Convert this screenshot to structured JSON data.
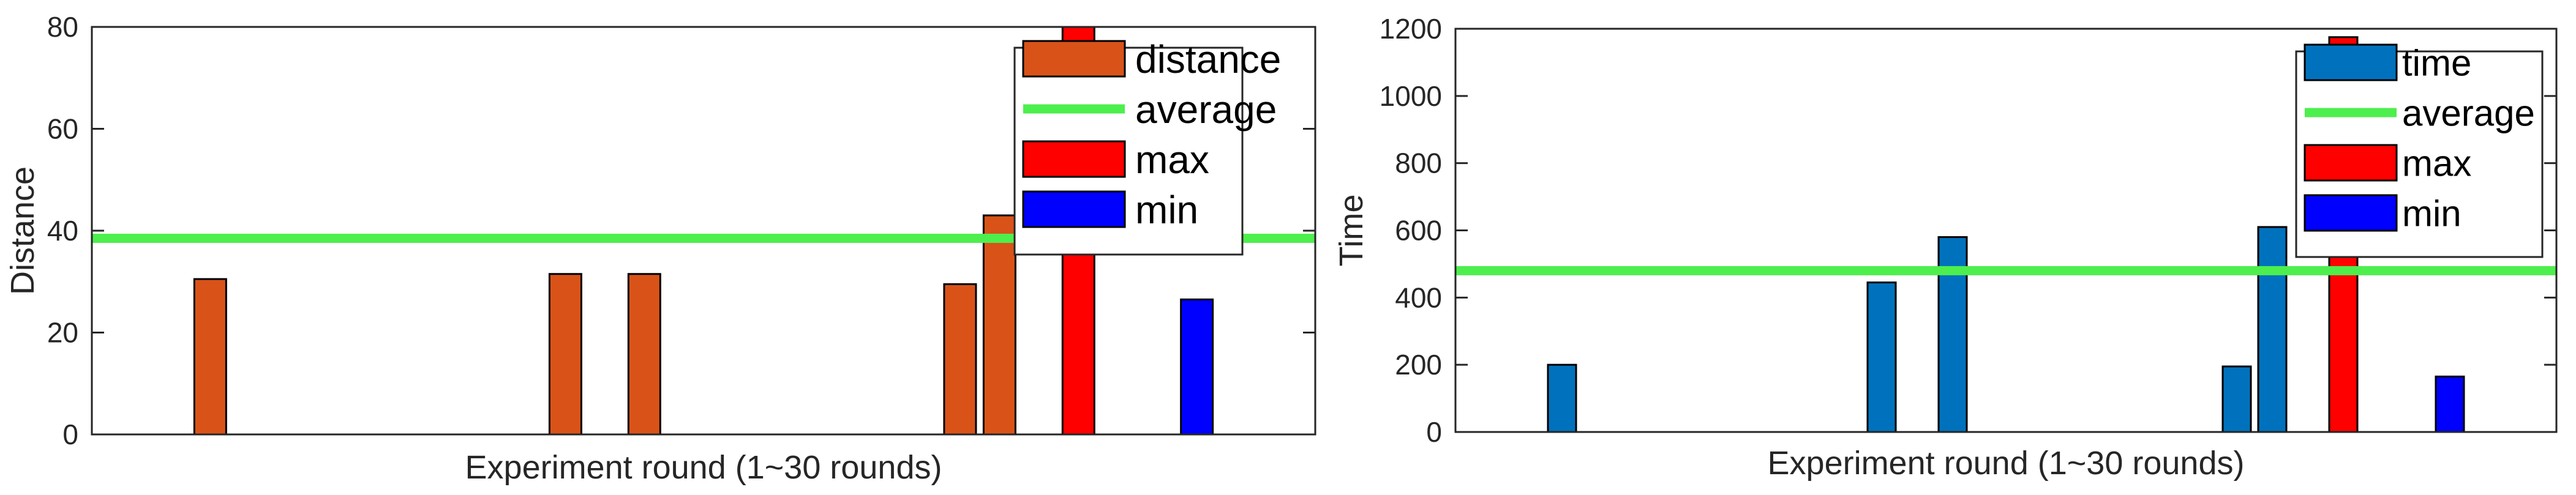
{
  "chart_data": [
    {
      "type": "bar",
      "title": "",
      "xlabel": "Experiment round (1~30 rounds)",
      "ylabel": "Distance",
      "ylim": [
        0,
        80
      ],
      "yticks": [
        0,
        20,
        40,
        60,
        80
      ],
      "xlim": [
        0,
        31
      ],
      "x": [
        3,
        12,
        14,
        22,
        23,
        25,
        28
      ],
      "series": [
        {
          "name": "distance",
          "x": [
            3,
            12,
            14,
            22,
            23
          ],
          "values": [
            30.5,
            31.5,
            31.5,
            29.5,
            43
          ],
          "color": "#D95319"
        },
        {
          "name": "max",
          "x": [
            25
          ],
          "values": [
            80
          ],
          "color": "#FF0000"
        },
        {
          "name": "min",
          "x": [
            28
          ],
          "values": [
            26.5
          ],
          "color": "#0000FF"
        }
      ],
      "average": {
        "name": "average",
        "value": 38.5,
        "color": "#4DEF4D"
      },
      "legend": {
        "position": "top-right",
        "entries": [
          "distance",
          "average",
          "max",
          "min"
        ]
      },
      "grid": false
    },
    {
      "type": "bar",
      "title": "",
      "xlabel": "Experiment round (1~30 rounds)",
      "ylabel": "Time",
      "ylim": [
        0,
        1200
      ],
      "yticks": [
        0,
        200,
        400,
        600,
        800,
        1000,
        1200
      ],
      "xlim": [
        0,
        31
      ],
      "x": [
        3,
        12,
        14,
        22,
        23,
        25,
        28
      ],
      "series": [
        {
          "name": "time",
          "x": [
            3,
            12,
            14,
            22,
            23
          ],
          "values": [
            200,
            445,
            580,
            195,
            610
          ],
          "color": "#0072BD"
        },
        {
          "name": "max",
          "x": [
            25
          ],
          "values": [
            1175
          ],
          "color": "#FF0000"
        },
        {
          "name": "min",
          "x": [
            28
          ],
          "values": [
            165
          ],
          "color": "#0000FF"
        }
      ],
      "average": {
        "name": "average",
        "value": 480,
        "color": "#4DEF4D"
      },
      "legend": {
        "position": "top-right",
        "entries": [
          "time",
          "average",
          "max",
          "min"
        ]
      },
      "grid": false
    }
  ]
}
